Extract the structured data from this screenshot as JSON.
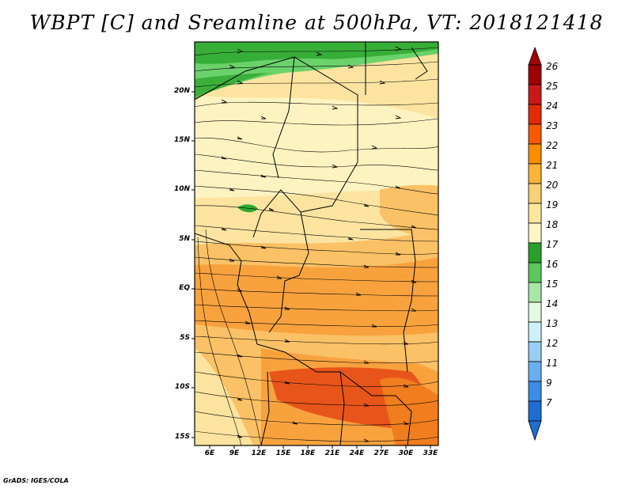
{
  "title": "WBPT [C] and Sreamline at 500hPa, VT: 2018121418",
  "credit": "GrADS: IGES/COLA",
  "axes": {
    "lat_labels": [
      "20N",
      "15N",
      "10N",
      "5N",
      "EQ",
      "5S",
      "10S",
      "15S"
    ],
    "lon_labels": [
      "6E",
      "9E",
      "12E",
      "15E",
      "18E",
      "21E",
      "24E",
      "27E",
      "30E",
      "33E"
    ]
  },
  "colorbar": {
    "labels": [
      "26",
      "25",
      "24",
      "23",
      "22",
      "21",
      "20",
      "19",
      "18",
      "17",
      "16",
      "15",
      "14",
      "13",
      "12",
      "11",
      "9",
      "7"
    ],
    "colors": [
      "#a00000",
      "#c81818",
      "#e02c00",
      "#f55a00",
      "#fa8c00",
      "#fcb33a",
      "#fcd074",
      "#fde79c",
      "#fff6c8",
      "#2aa02a",
      "#5ac85a",
      "#a8e6a8",
      "#e2fae2",
      "#cdf0fa",
      "#9acdf5",
      "#6aaff0",
      "#3c8ce6",
      "#1e6ed2"
    ],
    "top_arrow_color": "#a00000",
    "bottom_arrow_color": "#1e6ed2"
  },
  "map_colors": {
    "green_dark": "#2ea82e",
    "green_light": "#6bd26b",
    "yellow_pale": "#fdf3c0",
    "yellow": "#fce4a0",
    "orange_light": "#fbc166",
    "orange": "#f8a23e",
    "orange_dark": "#f07d1e",
    "red_orange": "#e8551a"
  }
}
